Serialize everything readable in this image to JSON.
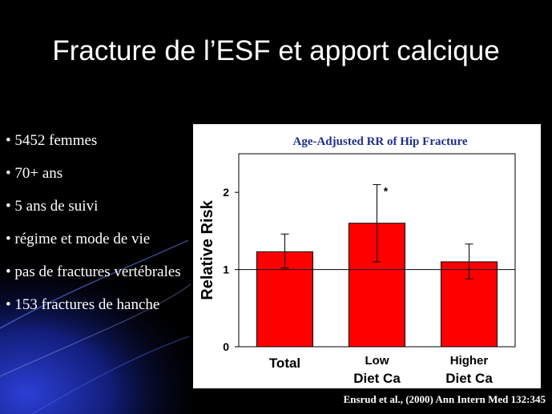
{
  "slide": {
    "title": "Fracture de l’ESF et apport calcique",
    "bullets": [
      "• 5452 femmes",
      "• 70+ ans",
      "• 5 ans de suivi",
      "• régime et mode de vie",
      "• pas de fractures vertébrales",
      "• 153 fractures de hanche"
    ],
    "citation": "Ensrud  et al., (2000) Ann Intern Med 132:345"
  },
  "colors": {
    "background": "#000000",
    "bar_fill": "#ff0000",
    "chart_title": "#1f2f8f"
  },
  "chart_data": {
    "type": "bar",
    "title": "Age-Adjusted RR of Hip Fracture",
    "ylabel": "Relative Risk",
    "xlabel": "",
    "categories": [
      {
        "line1": "Total",
        "line2": ""
      },
      {
        "line1": "Low",
        "line2": "Diet Ca"
      },
      {
        "line1": "Higher",
        "line2": "Diet Ca"
      }
    ],
    "values": [
      1.23,
      1.6,
      1.1
    ],
    "ci_low": [
      1.02,
      1.1,
      0.88
    ],
    "ci_high": [
      1.46,
      2.1,
      1.33
    ],
    "significance": [
      "",
      "*",
      ""
    ],
    "reference_line": 1,
    "yticks": [
      0,
      1,
      2
    ],
    "ylim": [
      0,
      2.5
    ],
    "grid": false,
    "legend": "none"
  }
}
